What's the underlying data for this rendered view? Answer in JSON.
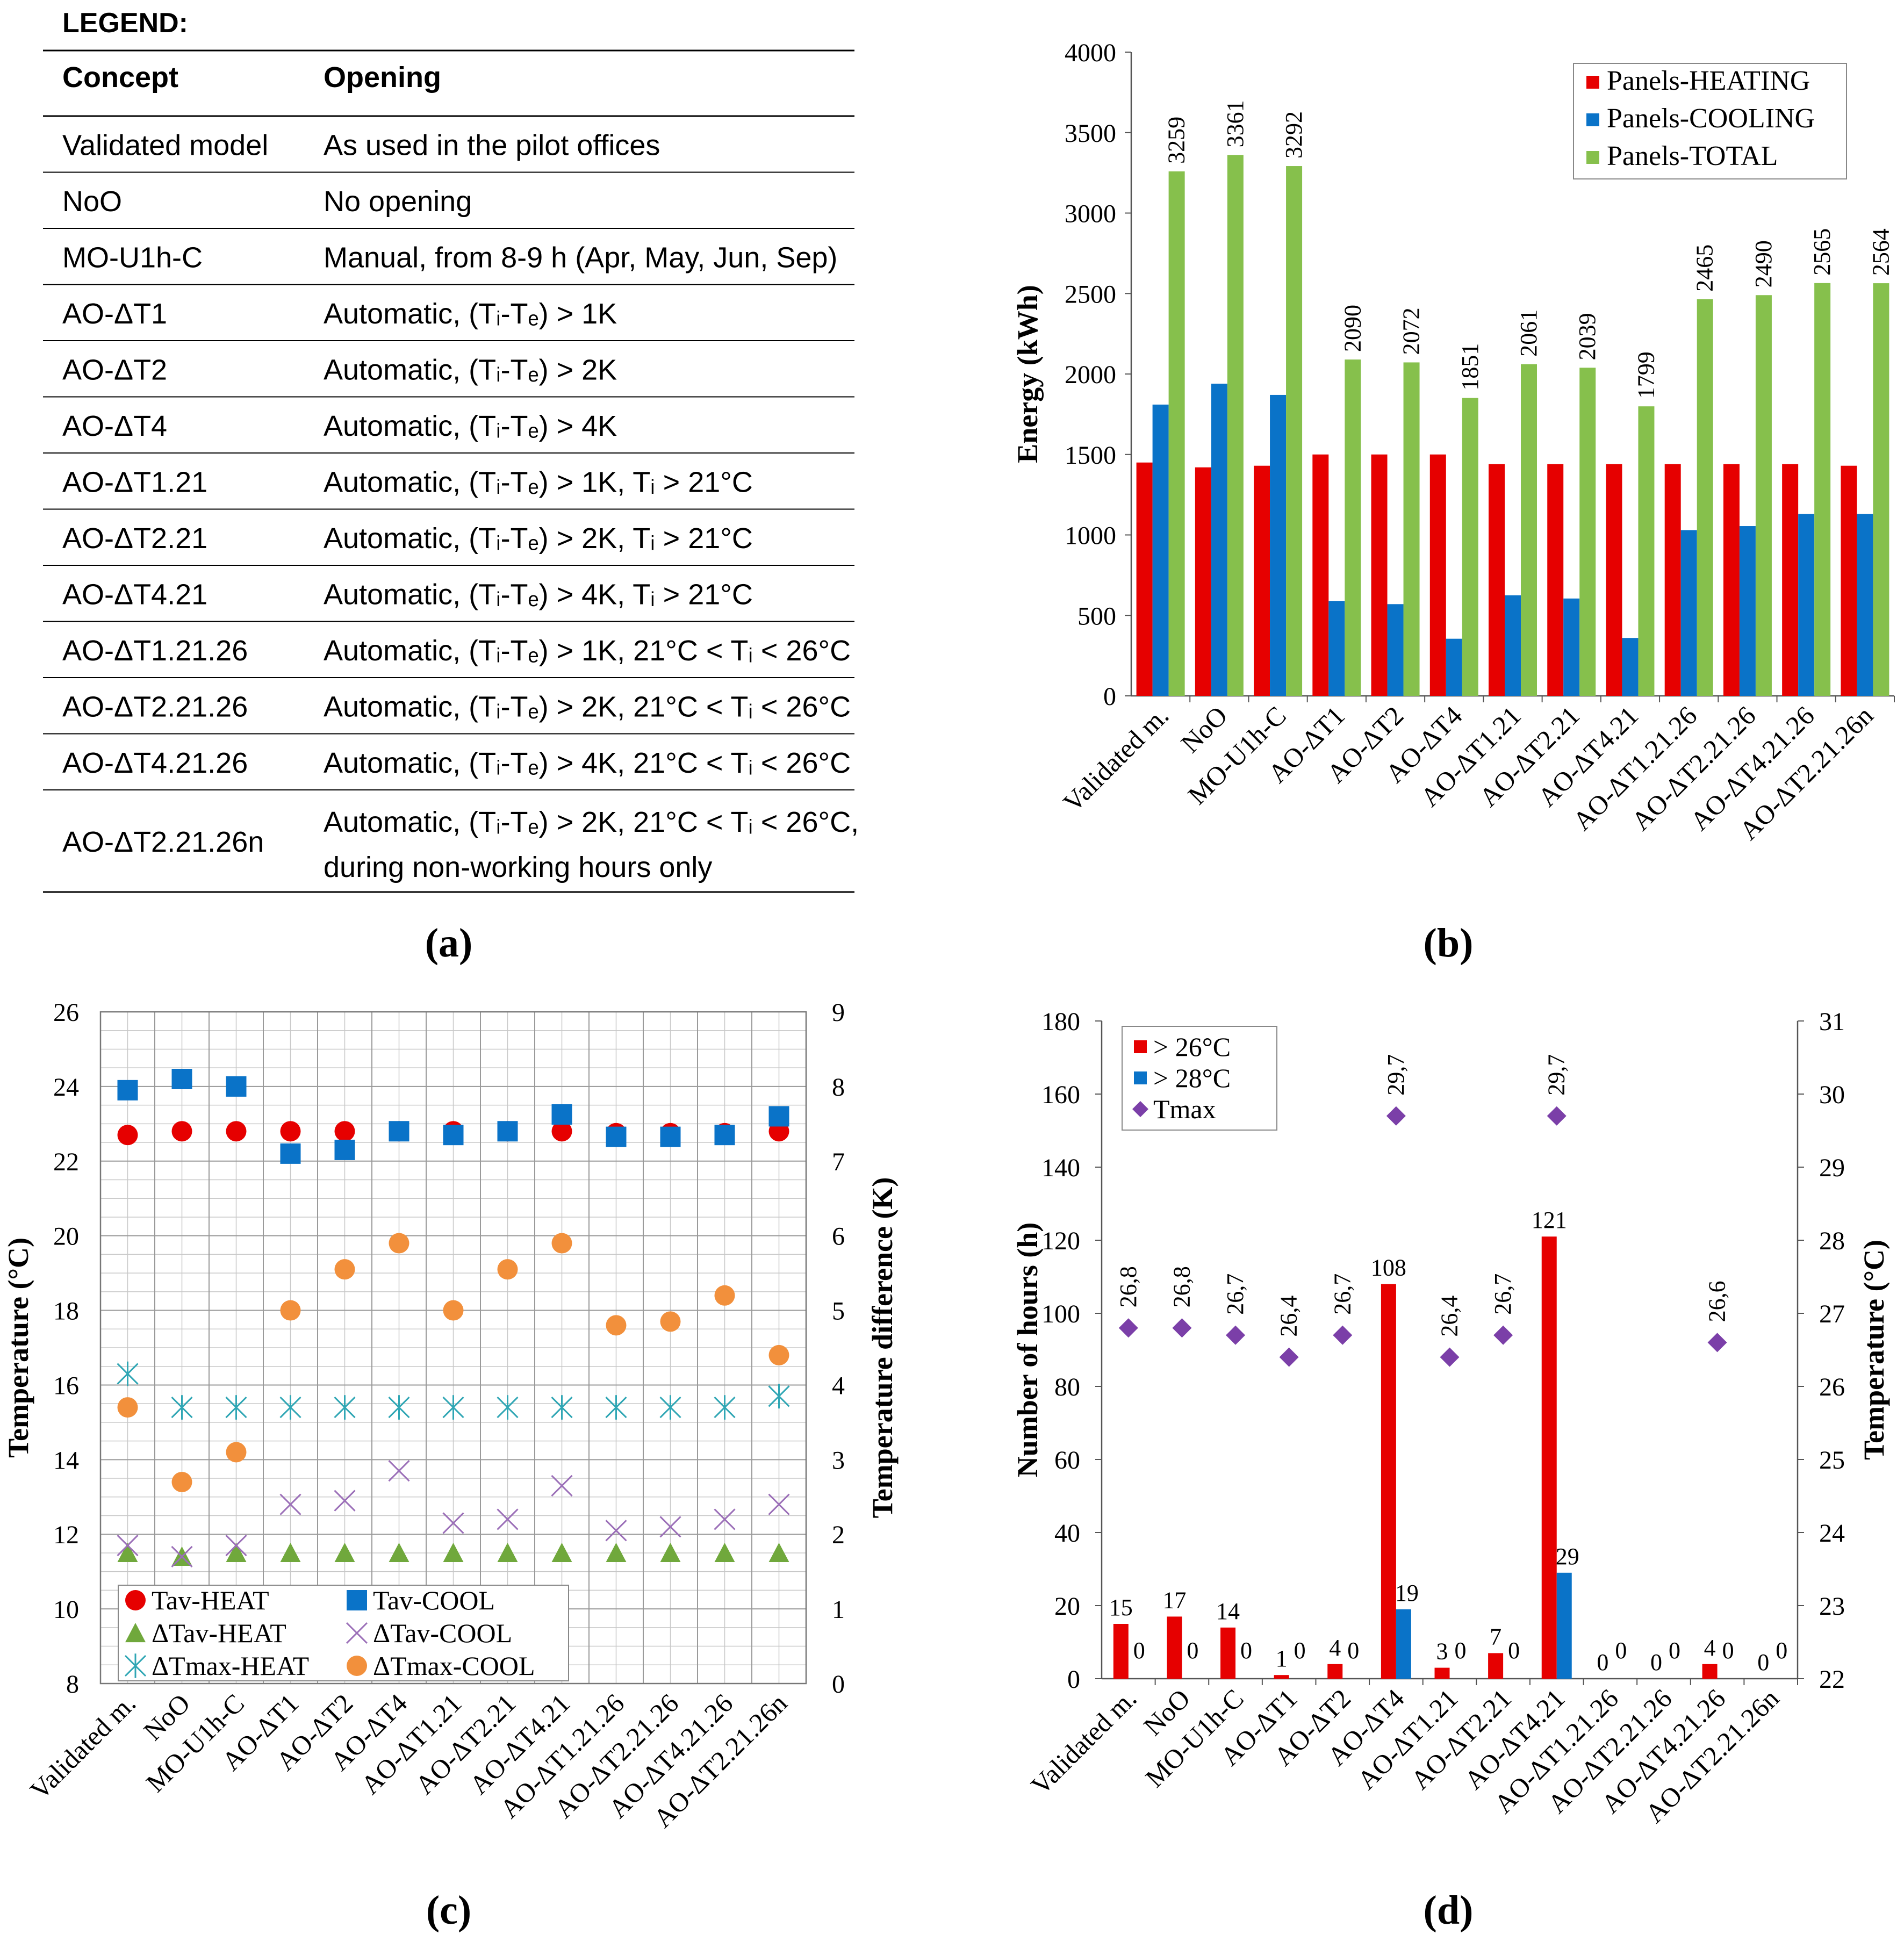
{
  "legend_table": {
    "title": "LEGEND:",
    "headers": [
      "Concept",
      "Opening"
    ],
    "rows": [
      {
        "concept": "Validated model",
        "opening": [
          "As used in the pilot offices"
        ]
      },
      {
        "concept": "NoO",
        "opening": [
          "No opening"
        ]
      },
      {
        "concept": "MO-U1h-C",
        "opening": [
          "Manual, from 8-9 h (Apr, May, Jun, Sep)"
        ]
      },
      {
        "concept": "AO-ΔT1",
        "opening": [
          "Automatic, (Tᵢ-Tₑ) > 1K"
        ]
      },
      {
        "concept": "AO-ΔT2",
        "opening": [
          "Automatic, (Tᵢ-Tₑ) > 2K"
        ]
      },
      {
        "concept": "AO-ΔT4",
        "opening": [
          "Automatic, (Tᵢ-Tₑ) > 4K"
        ]
      },
      {
        "concept": "AO-ΔT1.21",
        "opening": [
          "Automatic, (Tᵢ-Tₑ) > 1K, Tᵢ > 21°C"
        ]
      },
      {
        "concept": "AO-ΔT2.21",
        "opening": [
          "Automatic, (Tᵢ-Tₑ) > 2K, Tᵢ > 21°C"
        ]
      },
      {
        "concept": "AO-ΔT4.21",
        "opening": [
          "Automatic, (Tᵢ-Tₑ) > 4K, Tᵢ > 21°C"
        ]
      },
      {
        "concept": "AO-ΔT1.21.26",
        "opening": [
          "Automatic, (Tᵢ-Tₑ) > 1K, 21°C < Tᵢ < 26°C"
        ]
      },
      {
        "concept": "AO-ΔT2.21.26",
        "opening": [
          "Automatic, (Tᵢ-Tₑ) > 2K, 21°C < Tᵢ < 26°C"
        ]
      },
      {
        "concept": "AO-ΔT4.21.26",
        "opening": [
          "Automatic, (Tᵢ-Tₑ) > 4K, 21°C < Tᵢ < 26°C"
        ]
      },
      {
        "concept": "AO-ΔT2.21.26n",
        "opening": [
          "Automatic, (Tᵢ-Tₑ) > 2K, 21°C < Tᵢ < 26°C,",
          "during non-working hours only"
        ]
      }
    ]
  },
  "panel_labels": [
    "(a)",
    "(b)",
    "(c)",
    "(d)"
  ],
  "chart_data": [
    {
      "id": "b",
      "type": "bar",
      "ylabel": "Energy (kWh)",
      "ylim": [
        0,
        4000
      ],
      "yticks": [
        0,
        500,
        1000,
        1500,
        2000,
        2500,
        3000,
        3500,
        4000
      ],
      "categories": [
        "Validated m.",
        "NoO",
        "MO-U1h-C",
        "AO-ΔT1",
        "AO-ΔT2",
        "AO-ΔT4",
        "AO-ΔT1.21",
        "AO-ΔT2.21",
        "AO-ΔT4.21",
        "AO-ΔT1.21.26",
        "AO-ΔT2.21.26",
        "AO-ΔT4.21.26",
        "AO-ΔT2.21.26n"
      ],
      "legend_position": "top-right",
      "series": [
        {
          "name": "Panels-HEATING",
          "color": "#e60000",
          "values": [
            1450,
            1420,
            1430,
            1500,
            1500,
            1500,
            1440,
            1440,
            1440,
            1440,
            1440,
            1440,
            1430
          ]
        },
        {
          "name": "Panels-COOLING",
          "color": "#0a73c8",
          "values": [
            1810,
            1940,
            1870,
            590,
            570,
            355,
            625,
            605,
            360,
            1030,
            1055,
            1130,
            1130
          ]
        },
        {
          "name": "Panels-TOTAL",
          "color": "#86c04c",
          "values": [
            3259,
            3361,
            3292,
            2090,
            2072,
            1851,
            2061,
            2039,
            1799,
            2465,
            2490,
            2565,
            2564
          ]
        }
      ],
      "data_labels": [
        "3259",
        "3361",
        "3292",
        "2090",
        "2072",
        "1851",
        "2061",
        "2039",
        "1799",
        "2465",
        "2490",
        "2565",
        "2564"
      ]
    },
    {
      "id": "c",
      "type": "scatter",
      "ylabel_left": "Temperature (°C)",
      "ylabel_right": "Temperature difference (K)",
      "ylim_left": [
        8,
        26
      ],
      "yticks_left": [
        8,
        10,
        12,
        14,
        16,
        18,
        20,
        22,
        24,
        26
      ],
      "ylim_right": [
        0,
        9
      ],
      "yticks_right": [
        0,
        1,
        2,
        3,
        4,
        5,
        6,
        7,
        8,
        9
      ],
      "grid": true,
      "categories": [
        "Validated m.",
        "NoO",
        "MO-U1h-C",
        "AO-ΔT1",
        "AO-ΔT2",
        "AO-ΔT4",
        "AO-ΔT1.21",
        "AO-ΔT2.21",
        "AO-ΔT4.21",
        "AO-ΔT1.21.26",
        "AO-ΔT2.21.26",
        "AO-ΔT4.21.26",
        "AO-ΔT2.21.26n"
      ],
      "legend_position": "bottom-left",
      "series": [
        {
          "name": "Tav-HEAT",
          "axis": "left",
          "marker": "circle",
          "color": "#e60000",
          "values": [
            22.7,
            22.8,
            22.8,
            22.8,
            22.8,
            22.8,
            22.8,
            22.8,
            22.8,
            22.75,
            22.75,
            22.75,
            22.8
          ]
        },
        {
          "name": "Tav-COOL",
          "axis": "left",
          "marker": "square",
          "color": "#0a73c8",
          "values": [
            23.9,
            24.2,
            24.0,
            22.2,
            22.3,
            22.8,
            22.7,
            22.8,
            23.25,
            22.65,
            22.65,
            22.7,
            23.2
          ]
        },
        {
          "name": "ΔTav-HEAT",
          "axis": "right",
          "marker": "triangle",
          "color": "#70a83c",
          "values": [
            1.75,
            1.7,
            1.75,
            1.75,
            1.75,
            1.75,
            1.75,
            1.75,
            1.75,
            1.75,
            1.75,
            1.75,
            1.75
          ]
        },
        {
          "name": "ΔTav-COOL",
          "axis": "right",
          "marker": "x",
          "color": "#9b6fb8",
          "values": [
            1.85,
            1.7,
            1.85,
            2.4,
            2.45,
            2.85,
            2.15,
            2.2,
            2.65,
            2.05,
            2.1,
            2.2,
            2.4
          ]
        },
        {
          "name": "ΔTmax-HEAT",
          "axis": "right",
          "marker": "star",
          "color": "#2fa6b4",
          "values": [
            4.15,
            3.7,
            3.7,
            3.7,
            3.7,
            3.7,
            3.7,
            3.7,
            3.7,
            3.7,
            3.7,
            3.7,
            3.85
          ]
        },
        {
          "name": "ΔTmax-COOL",
          "axis": "right",
          "marker": "circle",
          "color": "#f2903c",
          "values": [
            3.7,
            2.7,
            3.1,
            5.0,
            5.55,
            5.9,
            5.0,
            5.55,
            5.9,
            4.8,
            4.85,
            5.2,
            4.4
          ]
        }
      ]
    },
    {
      "id": "d",
      "type": "bar",
      "ylabel_left": "Number of hours (h)",
      "ylabel_right": "Temperature (°C)",
      "ylim_left": [
        0,
        180
      ],
      "yticks_left": [
        0,
        20,
        40,
        60,
        80,
        100,
        120,
        140,
        160,
        180
      ],
      "ylim_right": [
        22,
        31
      ],
      "yticks_right": [
        22,
        23,
        24,
        25,
        26,
        27,
        28,
        29,
        30,
        31
      ],
      "categories": [
        "Validated m.",
        "NoO",
        "MO-U1h-C",
        "AO-ΔT1",
        "AO-ΔT2",
        "AO-ΔT4",
        "AO-ΔT1.21",
        "AO-ΔT2.21",
        "AO-ΔT4.21",
        "AO-ΔT1.21.26",
        "AO-ΔT2.21.26",
        "AO-ΔT4.21.26",
        "AO-ΔT2.21.26n"
      ],
      "legend_position": "top-left",
      "series": [
        {
          "name": "> 26°C",
          "axis": "left",
          "color": "#e60000",
          "values": [
            15,
            17,
            14,
            1,
            4,
            108,
            3,
            7,
            121,
            0,
            0,
            4,
            0
          ],
          "labels": [
            "15",
            "17",
            "14",
            "1",
            "4",
            "108",
            "3",
            "7",
            "121",
            "0",
            "0",
            "4",
            "0"
          ]
        },
        {
          "name": "> 28°C",
          "axis": "left",
          "color": "#0a73c8",
          "values": [
            0,
            0,
            0,
            0,
            0,
            19,
            0,
            0,
            29,
            0,
            0,
            0,
            0
          ],
          "labels": [
            "0",
            "0",
            "0",
            "0",
            "0",
            "19",
            "0",
            "0",
            "29",
            "0",
            "0",
            "0",
            "0"
          ]
        },
        {
          "name": "Tmax",
          "axis": "right",
          "marker": "diamond",
          "color": "#7b3fa8",
          "values": [
            26.8,
            26.8,
            26.7,
            26.4,
            26.7,
            29.7,
            26.4,
            26.7,
            29.7,
            null,
            null,
            26.6,
            null
          ],
          "labels": [
            "26,8",
            "26,8",
            "26,7",
            "26,4",
            "26,7",
            "29,7",
            "26,4",
            "26,7",
            "29,7",
            "",
            "",
            "26,6",
            ""
          ]
        }
      ]
    }
  ]
}
